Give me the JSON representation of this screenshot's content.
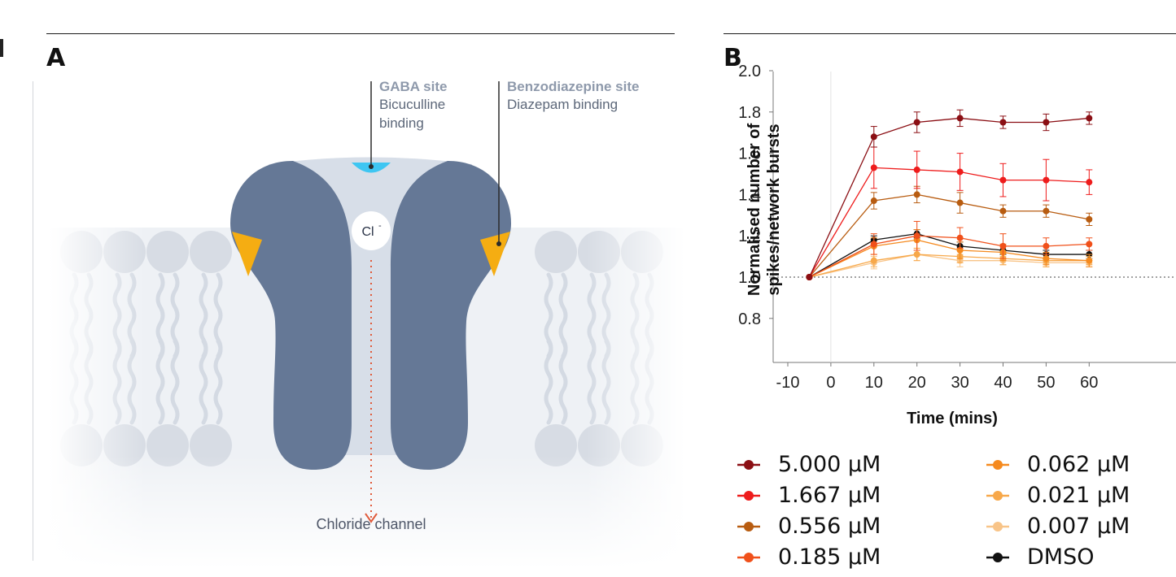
{
  "panel_a": {
    "letter": "A",
    "gaba_site_title": "GABA site",
    "gaba_site_line1": "Bicuculline",
    "gaba_site_line2": "binding",
    "benzo_site_title": "Benzodiazepine site",
    "benzo_site_line1": "Diazepam binding",
    "ion_label": "Cl",
    "ion_charge": "-",
    "channel_label": "Chloride channel",
    "colors": {
      "protein": "#657896",
      "lipid": "#d7dce4",
      "pore": "#d7dee8",
      "gaba_site": "#3ec6f2",
      "benzo_site": "#f5ad12",
      "flow_arrow": "#e05a3a"
    }
  },
  "panel_b": {
    "letter": "B"
  },
  "chart_data": {
    "type": "line",
    "xlabel": "Time (mins)",
    "ylabel_line1": "Normalised number of",
    "ylabel_line2": "spikes/network bursts",
    "x": [
      -5,
      10,
      20,
      30,
      40,
      50,
      60
    ],
    "x_ticks": [
      "-10",
      "0",
      "10",
      "20",
      "30",
      "40",
      "50",
      "60"
    ],
    "y_ticks": [
      "0.8",
      "1.0",
      "1.2",
      "1.4",
      "1.6",
      "1.8",
      "2.0"
    ],
    "xlim": [
      -10,
      60
    ],
    "ylim": [
      0.6,
      2.0
    ],
    "reference_line": 1.0,
    "series": [
      {
        "name": "5.000 µM",
        "color": "#8b0f14",
        "values": [
          1.0,
          1.68,
          1.75,
          1.77,
          1.75,
          1.75,
          1.77
        ],
        "errors": [
          0,
          0.05,
          0.05,
          0.04,
          0.03,
          0.04,
          0.03
        ]
      },
      {
        "name": "1.667 µM",
        "color": "#ee1c1c",
        "values": [
          1.0,
          1.53,
          1.52,
          1.51,
          1.47,
          1.47,
          1.46
        ],
        "errors": [
          0,
          0.1,
          0.09,
          0.09,
          0.08,
          0.1,
          0.06
        ]
      },
      {
        "name": "0.556 µM",
        "color": "#b85c10",
        "values": [
          1.0,
          1.37,
          1.4,
          1.36,
          1.32,
          1.32,
          1.28
        ],
        "errors": [
          0,
          0.04,
          0.04,
          0.05,
          0.03,
          0.03,
          0.03
        ]
      },
      {
        "name": "0.185 µM",
        "color": "#f0501a",
        "values": [
          1.0,
          1.16,
          1.2,
          1.19,
          1.15,
          1.15,
          1.16
        ],
        "errors": [
          0,
          0.05,
          0.07,
          0.05,
          0.06,
          0.04,
          0.03
        ]
      },
      {
        "name": "0.062 µM",
        "color": "#f58a1f",
        "values": [
          1.0,
          1.15,
          1.18,
          1.13,
          1.12,
          1.09,
          1.08
        ],
        "errors": [
          0,
          0.04,
          0.05,
          0.04,
          0.04,
          0.03,
          0.03
        ]
      },
      {
        "name": "0.021 µM",
        "color": "#f7a84a",
        "values": [
          1.0,
          1.08,
          1.11,
          1.1,
          1.09,
          1.08,
          1.08
        ],
        "errors": [
          0,
          0.03,
          0.03,
          0.03,
          0.03,
          0.03,
          0.02
        ]
      },
      {
        "name": "0.007 µM",
        "color": "#f8c488",
        "values": [
          1.0,
          1.07,
          1.11,
          1.08,
          1.08,
          1.07,
          1.07
        ],
        "errors": [
          0,
          0.03,
          0.03,
          0.03,
          0.02,
          0.02,
          0.02
        ]
      },
      {
        "name": "DMSO",
        "color": "#111111",
        "values": [
          1.0,
          1.18,
          1.21,
          1.15,
          1.13,
          1.11,
          1.11
        ],
        "errors": [
          0,
          0.02,
          0.02,
          0.02,
          0.02,
          0.02,
          0.02
        ]
      }
    ],
    "legend_position": "bottom"
  }
}
